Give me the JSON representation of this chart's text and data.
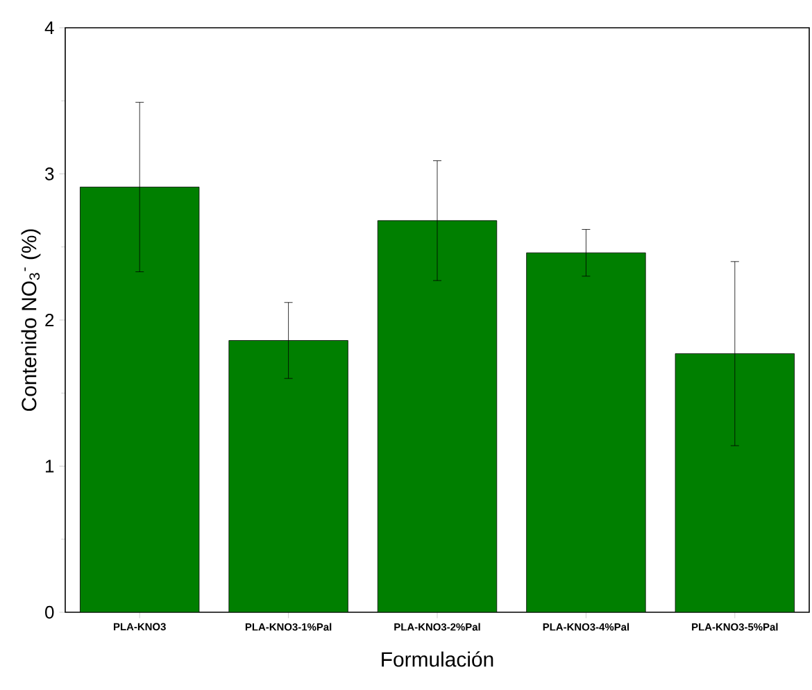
{
  "chart_data": {
    "type": "bar",
    "xlabel": "Formulación",
    "ylabel": "Contenido NO$_{3}$$^{-}$ (%)",
    "categories": [
      "PLA-KNO3",
      "PLA-KNO3-1%Pal",
      "PLA-KNO3-2%Pal",
      "PLA-KNO3-4%Pal",
      "PLA-KNO3-5%Pal"
    ],
    "values": [
      2.91,
      1.86,
      2.68,
      2.46,
      1.77
    ],
    "errors": [
      0.58,
      0.26,
      0.41,
      0.16,
      0.63
    ],
    "color": "#007f00",
    "ylim": [
      0,
      4
    ],
    "yticks": [
      0,
      1,
      2,
      3,
      4
    ]
  }
}
